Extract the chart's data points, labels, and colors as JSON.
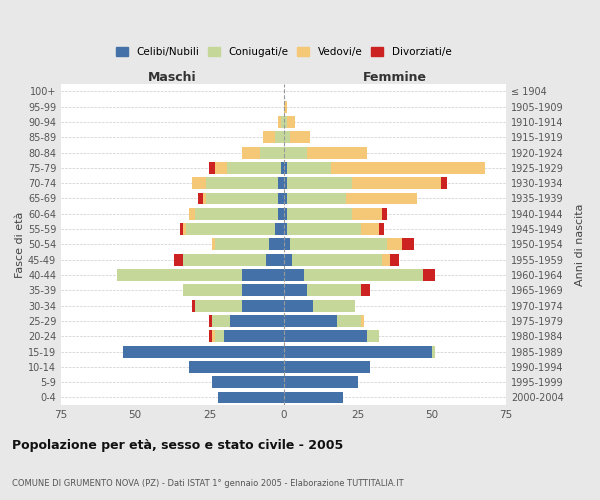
{
  "age_groups": [
    "0-4",
    "5-9",
    "10-14",
    "15-19",
    "20-24",
    "25-29",
    "30-34",
    "35-39",
    "40-44",
    "45-49",
    "50-54",
    "55-59",
    "60-64",
    "65-69",
    "70-74",
    "75-79",
    "80-84",
    "85-89",
    "90-94",
    "95-99",
    "100+"
  ],
  "birth_years": [
    "2000-2004",
    "1995-1999",
    "1990-1994",
    "1985-1989",
    "1980-1984",
    "1975-1979",
    "1970-1974",
    "1965-1969",
    "1960-1964",
    "1955-1959",
    "1950-1954",
    "1945-1949",
    "1940-1944",
    "1935-1939",
    "1930-1934",
    "1925-1929",
    "1920-1924",
    "1915-1919",
    "1910-1914",
    "1905-1909",
    "≤ 1904"
  ],
  "males": {
    "celibi": [
      22,
      24,
      32,
      54,
      20,
      18,
      14,
      14,
      14,
      6,
      5,
      3,
      2,
      2,
      2,
      1,
      0,
      0,
      0,
      0,
      0
    ],
    "coniugati": [
      0,
      0,
      0,
      0,
      3,
      6,
      16,
      20,
      42,
      28,
      18,
      30,
      28,
      24,
      24,
      18,
      8,
      3,
      1,
      0,
      0
    ],
    "vedovi": [
      0,
      0,
      0,
      0,
      1,
      0,
      0,
      0,
      0,
      0,
      1,
      1,
      2,
      1,
      5,
      4,
      6,
      4,
      1,
      0,
      0
    ],
    "divorziati": [
      0,
      0,
      0,
      0,
      1,
      1,
      1,
      0,
      0,
      3,
      0,
      1,
      0,
      2,
      0,
      2,
      0,
      0,
      0,
      0,
      0
    ]
  },
  "females": {
    "nubili": [
      20,
      25,
      29,
      50,
      28,
      18,
      10,
      8,
      7,
      3,
      2,
      1,
      1,
      1,
      1,
      1,
      0,
      0,
      0,
      0,
      0
    ],
    "coniugate": [
      0,
      0,
      0,
      1,
      4,
      8,
      14,
      18,
      40,
      30,
      33,
      25,
      22,
      20,
      22,
      15,
      8,
      2,
      1,
      0,
      0
    ],
    "vedove": [
      0,
      0,
      0,
      0,
      0,
      1,
      0,
      0,
      0,
      3,
      5,
      6,
      10,
      24,
      30,
      52,
      20,
      7,
      3,
      1,
      0
    ],
    "divorziate": [
      0,
      0,
      0,
      0,
      0,
      0,
      0,
      3,
      4,
      3,
      4,
      2,
      2,
      0,
      2,
      0,
      0,
      0,
      0,
      0,
      0
    ]
  },
  "colors": {
    "celibi": "#4472a8",
    "coniugati": "#c5d89a",
    "vedovi": "#f5c877",
    "divorziati": "#cc2222"
  },
  "xlim": 75,
  "title": "Popolazione per età, sesso e stato civile - 2005",
  "subtitle": "COMUNE DI GRUMENTO NOVA (PZ) - Dati ISTAT 1° gennaio 2005 - Elaborazione TUTTITALIA.IT",
  "ylabel_left": "Fasce di età",
  "ylabel_right": "Anni di nascita",
  "xlabel_left": "Maschi",
  "xlabel_right": "Femmine",
  "bg_color": "#e8e8e8",
  "plot_bg": "#ffffff"
}
